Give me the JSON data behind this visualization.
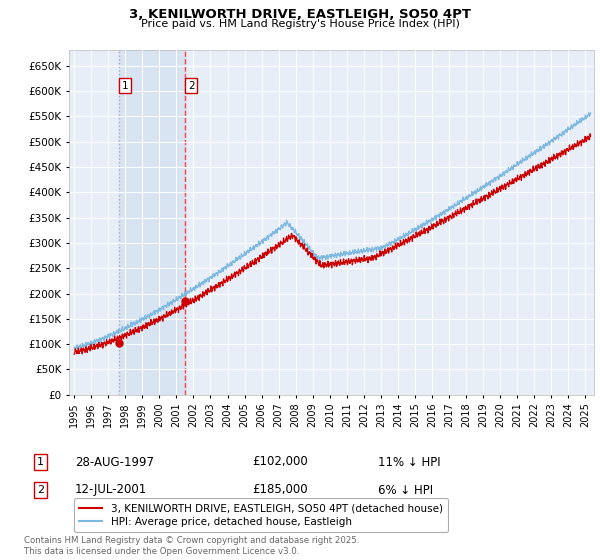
{
  "title": "3, KENILWORTH DRIVE, EASTLEIGH, SO50 4PT",
  "subtitle": "Price paid vs. HM Land Registry's House Price Index (HPI)",
  "ylim": [
    0,
    680000
  ],
  "yticks": [
    0,
    50000,
    100000,
    150000,
    200000,
    250000,
    300000,
    350000,
    400000,
    450000,
    500000,
    550000,
    600000,
    650000
  ],
  "xlim_start": 1994.7,
  "xlim_end": 2025.5,
  "background_color": "#ffffff",
  "plot_background_color": "#e8eef8",
  "grid_color": "#ffffff",
  "hpi_color": "#7db8e0",
  "price_color": "#cc0000",
  "marker1_x": 1997.65,
  "marker1_y": 102000,
  "marker2_x": 2001.53,
  "marker2_y": 185000,
  "shade_color": "#ccdcf0",
  "vline1_color": "#aaaacc",
  "vline1_style": "dotted",
  "vline2_color": "#ff4444",
  "vline2_style": "dashed",
  "legend_line1": "3, KENILWORTH DRIVE, EASTLEIGH, SO50 4PT (detached house)",
  "legend_line2": "HPI: Average price, detached house, Eastleigh",
  "table_row1_num": "1",
  "table_row1_date": "28-AUG-1997",
  "table_row1_price": "£102,000",
  "table_row1_hpi": "11% ↓ HPI",
  "table_row2_num": "2",
  "table_row2_date": "12-JUL-2001",
  "table_row2_price": "£185,000",
  "table_row2_hpi": "6% ↓ HPI",
  "footer": "Contains HM Land Registry data © Crown copyright and database right 2025.\nThis data is licensed under the Open Government Licence v3.0."
}
